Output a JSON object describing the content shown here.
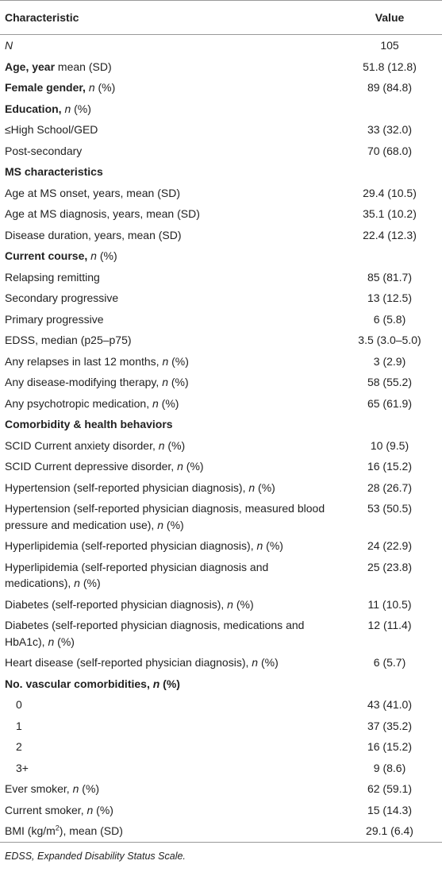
{
  "table": {
    "header": [
      "Characteristic",
      "Value"
    ],
    "rows": [
      {
        "label": [
          {
            "text": "N",
            "italic": true
          }
        ],
        "value": "105"
      },
      {
        "label": [
          {
            "text": "Age, year",
            "bold": true
          },
          {
            "text": " mean (SD)"
          }
        ],
        "value": "51.8 (12.8)"
      },
      {
        "label": [
          {
            "text": "Female gender, ",
            "bold": true
          },
          {
            "text": "n",
            "italic": true
          },
          {
            "text": " (%)"
          }
        ],
        "value": "89 (84.8)"
      },
      {
        "label": [
          {
            "text": "Education, ",
            "bold": true
          },
          {
            "text": "n",
            "italic": true
          },
          {
            "text": " (%)"
          }
        ],
        "value": ""
      },
      {
        "label": [
          {
            "text": "≤High School/GED"
          }
        ],
        "value": "33 (32.0)"
      },
      {
        "label": [
          {
            "text": "Post-secondary"
          }
        ],
        "value": "70 (68.0)"
      },
      {
        "label": [
          {
            "text": "MS characteristics",
            "bold": true
          }
        ],
        "value": ""
      },
      {
        "label": [
          {
            "text": "Age at MS onset, years, mean (SD)"
          }
        ],
        "value": "29.4 (10.5)"
      },
      {
        "label": [
          {
            "text": "Age at MS diagnosis, years, mean (SD)"
          }
        ],
        "value": "35.1 (10.2)"
      },
      {
        "label": [
          {
            "text": "Disease duration, years, mean (SD)"
          }
        ],
        "value": "22.4 (12.3)"
      },
      {
        "label": [
          {
            "text": "Current course, ",
            "bold": true
          },
          {
            "text": "n",
            "italic": true
          },
          {
            "text": " (%)"
          }
        ],
        "value": ""
      },
      {
        "label": [
          {
            "text": "Relapsing remitting"
          }
        ],
        "value": "85 (81.7)"
      },
      {
        "label": [
          {
            "text": "Secondary progressive"
          }
        ],
        "value": "13 (12.5)"
      },
      {
        "label": [
          {
            "text": "Primary progressive"
          }
        ],
        "value": "6 (5.8)"
      },
      {
        "label": [
          {
            "text": "EDSS, median (p25–p75)"
          }
        ],
        "value": "3.5 (3.0–5.0)"
      },
      {
        "label": [
          {
            "text": "Any relapses in last 12 months, "
          },
          {
            "text": "n",
            "italic": true
          },
          {
            "text": " (%)"
          }
        ],
        "value": "3 (2.9)"
      },
      {
        "label": [
          {
            "text": "Any disease-modifying therapy, "
          },
          {
            "text": "n",
            "italic": true
          },
          {
            "text": " (%)"
          }
        ],
        "value": "58 (55.2)"
      },
      {
        "label": [
          {
            "text": "Any psychotropic medication, "
          },
          {
            "text": "n",
            "italic": true
          },
          {
            "text": " (%)"
          }
        ],
        "value": "65 (61.9)"
      },
      {
        "label": [
          {
            "text": "Comorbidity & health behaviors",
            "bold": true
          }
        ],
        "value": ""
      },
      {
        "label": [
          {
            "text": "SCID Current anxiety disorder, "
          },
          {
            "text": "n",
            "italic": true
          },
          {
            "text": " (%)"
          }
        ],
        "value": "10 (9.5)"
      },
      {
        "label": [
          {
            "text": "SCID Current depressive disorder, "
          },
          {
            "text": "n",
            "italic": true
          },
          {
            "text": " (%)"
          }
        ],
        "value": "16 (15.2)"
      },
      {
        "label": [
          {
            "text": "Hypertension (self-reported physician diagnosis), "
          },
          {
            "text": "n",
            "italic": true
          },
          {
            "text": " (%)"
          }
        ],
        "value": "28 (26.7)"
      },
      {
        "label": [
          {
            "text": "Hypertension (self-reported physician diagnosis, measured blood pressure and medication use), "
          },
          {
            "text": "n",
            "italic": true
          },
          {
            "text": " (%)"
          }
        ],
        "value": "53 (50.5)"
      },
      {
        "label": [
          {
            "text": "Hyperlipidemia (self-reported physician diagnosis), "
          },
          {
            "text": "n",
            "italic": true
          },
          {
            "text": " (%)"
          }
        ],
        "value": "24 (22.9)"
      },
      {
        "label": [
          {
            "text": "Hyperlipidemia (self-reported physician diagnosis and medications), "
          },
          {
            "text": "n",
            "italic": true
          },
          {
            "text": " (%)"
          }
        ],
        "value": "25 (23.8)"
      },
      {
        "label": [
          {
            "text": "Diabetes (self-reported physician diagnosis), "
          },
          {
            "text": "n",
            "italic": true
          },
          {
            "text": " (%)"
          }
        ],
        "value": "11 (10.5)"
      },
      {
        "label": [
          {
            "text": "Diabetes (self-reported physician diagnosis, medications and HbA1c), "
          },
          {
            "text": "n",
            "italic": true
          },
          {
            "text": " (%)"
          }
        ],
        "value": "12 (11.4)"
      },
      {
        "label": [
          {
            "text": "Heart disease (self-reported physician diagnosis), "
          },
          {
            "text": "n",
            "italic": true
          },
          {
            "text": " (%)"
          }
        ],
        "value": "6 (5.7)"
      },
      {
        "label": [
          {
            "text": "No. vascular comorbidities, ",
            "bold": true
          },
          {
            "text": "n",
            "bold": true,
            "italic": true
          },
          {
            "text": " (%)",
            "bold": true
          }
        ],
        "value": ""
      },
      {
        "label": [
          {
            "text": "0"
          }
        ],
        "value": "43 (41.0)",
        "indent": true
      },
      {
        "label": [
          {
            "text": "1"
          }
        ],
        "value": "37 (35.2)",
        "indent": true
      },
      {
        "label": [
          {
            "text": "2"
          }
        ],
        "value": "16 (15.2)",
        "indent": true
      },
      {
        "label": [
          {
            "text": "3+"
          }
        ],
        "value": "9 (8.6)",
        "indent": true
      },
      {
        "label": [
          {
            "text": "Ever smoker, "
          },
          {
            "text": "n",
            "italic": true
          },
          {
            "text": " (%)"
          }
        ],
        "value": "62 (59.1)"
      },
      {
        "label": [
          {
            "text": "Current smoker, "
          },
          {
            "text": "n",
            "italic": true
          },
          {
            "text": " (%)"
          }
        ],
        "value": "15 (14.3)"
      },
      {
        "label": [
          {
            "text": "BMI (kg/m"
          },
          {
            "text": "2",
            "sup": true
          },
          {
            "text": "), mean (SD)"
          }
        ],
        "value": "29.1 (6.4)"
      }
    ]
  },
  "footnote": "EDSS, Expanded Disability Status Scale."
}
